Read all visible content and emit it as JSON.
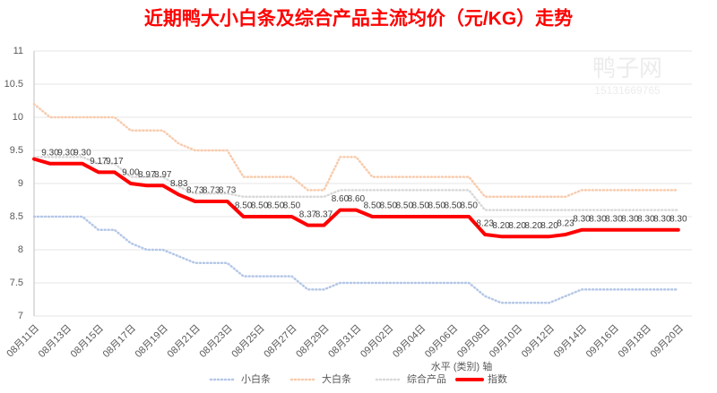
{
  "chart_data": {
    "type": "line",
    "title": "近期鸭大小白条及综合产品主流均价（元/KG）走势",
    "x_label": "水平 (类别) 轴",
    "watermark": [
      "鸭子网",
      "15131669765"
    ],
    "categories": [
      "08月11日",
      null,
      "08月13日",
      null,
      "08月15日",
      null,
      "08月17日",
      null,
      "08月19日",
      null,
      "08月21日",
      null,
      "08月23日",
      null,
      "08月25日",
      null,
      "08月27日",
      null,
      "08月29日",
      null,
      "08月31日",
      null,
      "09月02日",
      null,
      "09月04日",
      null,
      "09月06日",
      null,
      "09月08日",
      null,
      "09月10日",
      null,
      "09月12日",
      null,
      "09月14日",
      null,
      "09月16日",
      null,
      "09月18日",
      null,
      "09月20日"
    ],
    "ylim": [
      7,
      11
    ],
    "yticks": [
      7,
      7.5,
      8,
      8.5,
      9,
      9.5,
      10,
      10.5,
      11
    ],
    "grid": true,
    "legend": "bottom",
    "series": [
      {
        "name": "小白条",
        "color": "#b4c7e7",
        "style": "dotted",
        "values": [
          8.5,
          8.5,
          8.5,
          8.5,
          8.3,
          8.3,
          8.1,
          8.0,
          8.0,
          7.9,
          7.8,
          7.8,
          7.8,
          7.6,
          7.6,
          7.6,
          7.6,
          7.4,
          7.4,
          7.5,
          7.5,
          7.5,
          7.5,
          7.5,
          7.5,
          7.5,
          7.5,
          7.5,
          7.3,
          7.2,
          7.2,
          7.2,
          7.2,
          7.3,
          7.4,
          7.4,
          7.4,
          7.4,
          7.4,
          7.4,
          7.4
        ]
      },
      {
        "name": "大白条",
        "color": "#f8cbad",
        "style": "dotted",
        "values": [
          10.2,
          10.0,
          10.0,
          10.0,
          10.0,
          10.0,
          9.8,
          9.8,
          9.8,
          9.6,
          9.5,
          9.5,
          9.5,
          9.1,
          9.1,
          9.1,
          9.1,
          8.9,
          8.9,
          9.4,
          9.4,
          9.1,
          9.1,
          9.1,
          9.1,
          9.1,
          9.1,
          9.1,
          8.8,
          8.8,
          8.8,
          8.8,
          8.8,
          8.8,
          8.9,
          8.9,
          8.9,
          8.9,
          8.9,
          8.9,
          8.9
        ]
      },
      {
        "name": "综合产品",
        "color": "#d9d9d9",
        "style": "dotted",
        "values": [
          9.4,
          9.4,
          9.4,
          9.4,
          9.3,
          9.3,
          9.1,
          9.1,
          9.1,
          8.95,
          8.85,
          8.85,
          8.85,
          8.8,
          8.8,
          8.8,
          8.8,
          8.8,
          8.8,
          8.9,
          8.9,
          8.9,
          8.9,
          8.9,
          8.9,
          8.9,
          8.9,
          8.9,
          8.6,
          8.6,
          8.6,
          8.6,
          8.6,
          8.6,
          8.6,
          8.6,
          8.6,
          8.6,
          8.6,
          8.6,
          8.6
        ]
      },
      {
        "name": "指数",
        "color": "#ff0000",
        "style": "solid",
        "values": [
          9.37,
          9.3,
          9.3,
          9.3,
          9.17,
          9.17,
          9.0,
          8.97,
          8.97,
          8.83,
          8.73,
          8.73,
          8.73,
          8.5,
          8.5,
          8.5,
          8.5,
          8.37,
          8.37,
          8.6,
          8.6,
          8.5,
          8.5,
          8.5,
          8.5,
          8.5,
          8.5,
          8.5,
          8.23,
          8.2,
          8.2,
          8.2,
          8.2,
          8.23,
          8.3,
          8.3,
          8.3,
          8.3,
          8.3,
          8.3,
          8.3
        ],
        "value_labels": [
          null,
          "9.30",
          "9.30",
          "9.30",
          "9.17",
          "9.17",
          "9.00",
          "8.97",
          "8.97",
          "8.83",
          "8.73",
          "8.73",
          "8.73",
          "8.50",
          "8.50",
          "8.50",
          "8.50",
          "8.37",
          "8.37",
          "8.60",
          "8.60",
          "8.50",
          "8.50",
          "8.50",
          "8.50",
          "8.50",
          "8.50",
          "8.50",
          "8.23",
          "8.20",
          "8.20",
          "8.20",
          "8.20",
          "8.23",
          "8.30",
          "8.30",
          "8.30",
          "8.30",
          "8.30",
          "8.30",
          "8.30"
        ]
      }
    ]
  }
}
